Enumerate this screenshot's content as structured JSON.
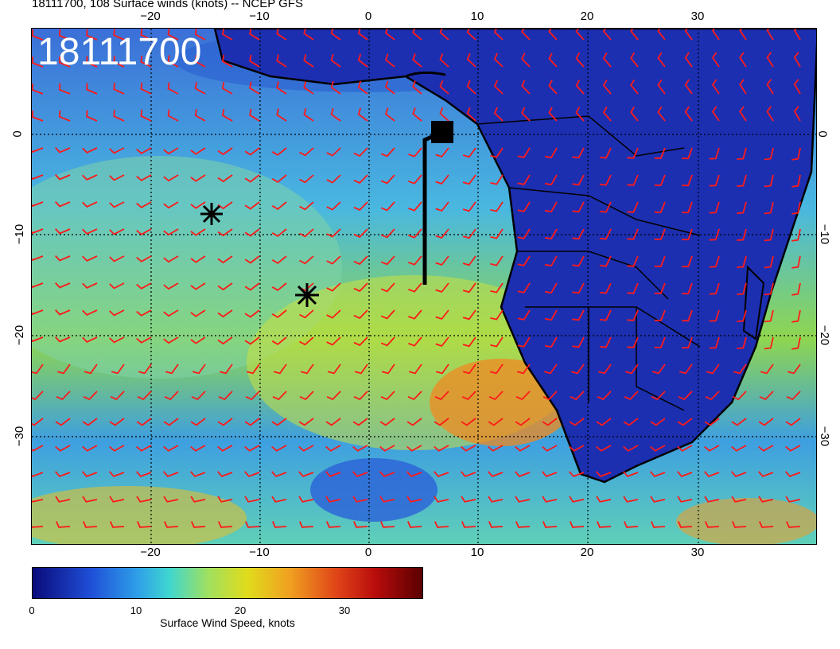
{
  "title": "18111700, 108 Surface winds (knots) -- NCEP GFS",
  "stamp": "18111700",
  "axes": {
    "x_ticks": [
      "−20",
      "−10",
      "0",
      "10",
      "20",
      "30"
    ],
    "y_ticks": [
      "0",
      "−10",
      "−20",
      "−30"
    ]
  },
  "colorbar": {
    "ticks": [
      "0",
      "10",
      "20",
      "30"
    ],
    "label": "Surface Wind Speed, knots"
  },
  "colors": {
    "barb": "#ff1a1a",
    "coast": "#000000",
    "land": "#1c2fb0",
    "grid": "#000000"
  },
  "icons": [
    "star-marker",
    "square-marker",
    "wind-barb"
  ]
}
